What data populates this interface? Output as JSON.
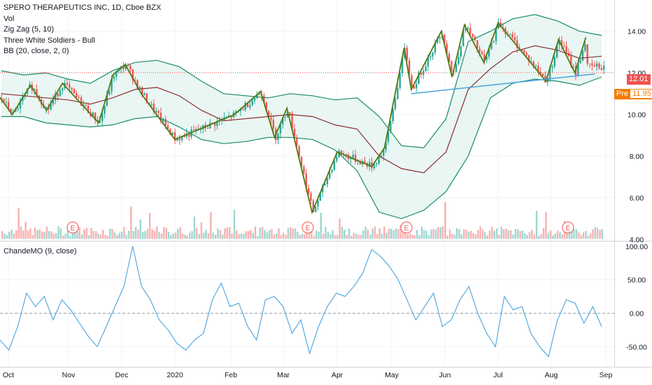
{
  "header": {
    "title": "SPERO THERAPEUTICS INC, 1D, Cboe BZX",
    "indicators": [
      "Vol",
      "Zig Zag (5, 10)",
      "Three White Soldiers - Bull",
      "BB (20, close, 2, 0)"
    ],
    "oscillator_label": "ChandeMO (9, close)"
  },
  "price_tags": {
    "last": "12.01",
    "pre_label": "Pre",
    "pre_value": "11.95"
  },
  "earnings_marker": "E",
  "colors": {
    "up": "#26a69a",
    "down": "#ef5350",
    "zigzag": "#4f7a0f",
    "bb_band": "#1a8a6a",
    "bb_basis": "#8b2f2f",
    "bb_fill": "#e9f6f3",
    "trendline": "#4aa3df",
    "cmo": "#4aa3df",
    "last_tag": "#ef5350",
    "pre_tag": "#f57c00"
  },
  "chart_data": [
    {
      "type": "candlestick",
      "title": "SPERO THERAPEUTICS INC, 1D, Cboe BZX",
      "y_ticks": [
        "14.00",
        "12.00",
        "10.00",
        "8.00",
        "6.00",
        "4.00"
      ],
      "y_tick_values": [
        14,
        12,
        10,
        8,
        6,
        4
      ],
      "ylim": [
        4,
        15.5
      ],
      "x_tick_labels": [
        "Oct",
        "Nov",
        "Dec",
        "2020",
        "Feb",
        "Mar",
        "Apr",
        "May",
        "Jun",
        "Jul",
        "Aug",
        "Sep"
      ],
      "earnings_dates": [
        "Nov",
        "Mar",
        "May",
        "Aug"
      ],
      "last_price": 12.01,
      "premarket_price": 11.95,
      "zigzag_points": [
        {
          "x": "Sep-23",
          "y": 11.3
        },
        {
          "x": "Oct-03",
          "y": 10.0
        },
        {
          "x": "Oct-12",
          "y": 11.4
        },
        {
          "x": "Oct-20",
          "y": 10.2
        },
        {
          "x": "Oct-28",
          "y": 11.5
        },
        {
          "x": "Nov-18",
          "y": 9.6
        },
        {
          "x": "Nov-26",
          "y": 11.9
        },
        {
          "x": "Dec-03",
          "y": 12.4
        },
        {
          "x": "Dec-12",
          "y": 11.0
        },
        {
          "x": "Dec-31",
          "y": 8.8
        },
        {
          "x": "Feb-03",
          "y": 10.0
        },
        {
          "x": "Feb-18",
          "y": 11.1
        },
        {
          "x": "Feb-26",
          "y": 8.9
        },
        {
          "x": "Mar-03",
          "y": 10.3
        },
        {
          "x": "Mar-17",
          "y": 5.3
        },
        {
          "x": "Mar-31",
          "y": 8.2
        },
        {
          "x": "Apr-20",
          "y": 7.5
        },
        {
          "x": "Apr-27",
          "y": 8.4
        },
        {
          "x": "May-08",
          "y": 13.2
        },
        {
          "x": "May-12",
          "y": 11.2
        },
        {
          "x": "May-29",
          "y": 14.0
        },
        {
          "x": "Jun-05",
          "y": 11.8
        },
        {
          "x": "Jun-12",
          "y": 14.3
        },
        {
          "x": "Jun-23",
          "y": 12.5
        },
        {
          "x": "Jul-01",
          "y": 14.4
        },
        {
          "x": "Jul-28",
          "y": 11.6
        },
        {
          "x": "Aug-05",
          "y": 13.6
        },
        {
          "x": "Aug-14",
          "y": 12.0
        },
        {
          "x": "Aug-20",
          "y": 13.7
        }
      ],
      "bollinger": {
        "upper": [
          12.1,
          11.9,
          12.0,
          11.7,
          11.5,
          12.1,
          12.5,
          12.6,
          12.3,
          11.6,
          11.0,
          10.9,
          10.8,
          11.0,
          10.9,
          10.7,
          10.8,
          9.9,
          8.5,
          8.4,
          9.8,
          13.5,
          14.0,
          14.6,
          14.8,
          14.5,
          14.0,
          13.8
        ],
        "basis": [
          11.0,
          10.9,
          10.8,
          10.7,
          10.5,
          10.8,
          11.2,
          11.3,
          10.9,
          10.2,
          9.7,
          9.8,
          9.9,
          10.0,
          9.9,
          9.5,
          9.3,
          8.0,
          7.4,
          7.2,
          8.2,
          11.2,
          12.2,
          13.0,
          13.3,
          13.1,
          12.7,
          12.8
        ],
        "lower": [
          9.9,
          9.9,
          9.6,
          9.5,
          9.4,
          9.5,
          9.8,
          9.9,
          9.4,
          8.8,
          8.6,
          8.7,
          8.9,
          8.9,
          8.8,
          8.3,
          7.3,
          5.3,
          5.0,
          5.4,
          6.3,
          8.0,
          10.8,
          11.5,
          11.7,
          11.6,
          11.4,
          11.8
        ]
      },
      "trendline": [
        {
          "x": "May-12",
          "y": 11.0
        },
        {
          "x": "Aug-25",
          "y": 11.95
        }
      ]
    },
    {
      "type": "line",
      "title": "ChandeMO (9, close)",
      "y_ticks": [
        "100.00",
        "50.00",
        "0.00",
        "-50.00"
      ],
      "y_tick_values": [
        100,
        50,
        0,
        -50
      ],
      "ylim": [
        -80,
        105
      ],
      "series": [
        {
          "name": "ChandeMO (9, close)",
          "values": [
            -40,
            -55,
            -20,
            30,
            10,
            25,
            -10,
            20,
            5,
            -15,
            -35,
            -50,
            -20,
            10,
            40,
            100,
            40,
            20,
            -10,
            -25,
            -45,
            -55,
            -40,
            -30,
            20,
            45,
            10,
            15,
            -20,
            -40,
            20,
            25,
            10,
            -30,
            -10,
            -60,
            -20,
            10,
            30,
            25,
            40,
            60,
            95,
            85,
            70,
            50,
            20,
            -10,
            10,
            30,
            -20,
            -10,
            20,
            40,
            0,
            -30,
            -50,
            25,
            5,
            10,
            -30,
            -50,
            -65,
            -10,
            20,
            15,
            -15,
            10,
            -20
          ]
        }
      ]
    }
  ]
}
